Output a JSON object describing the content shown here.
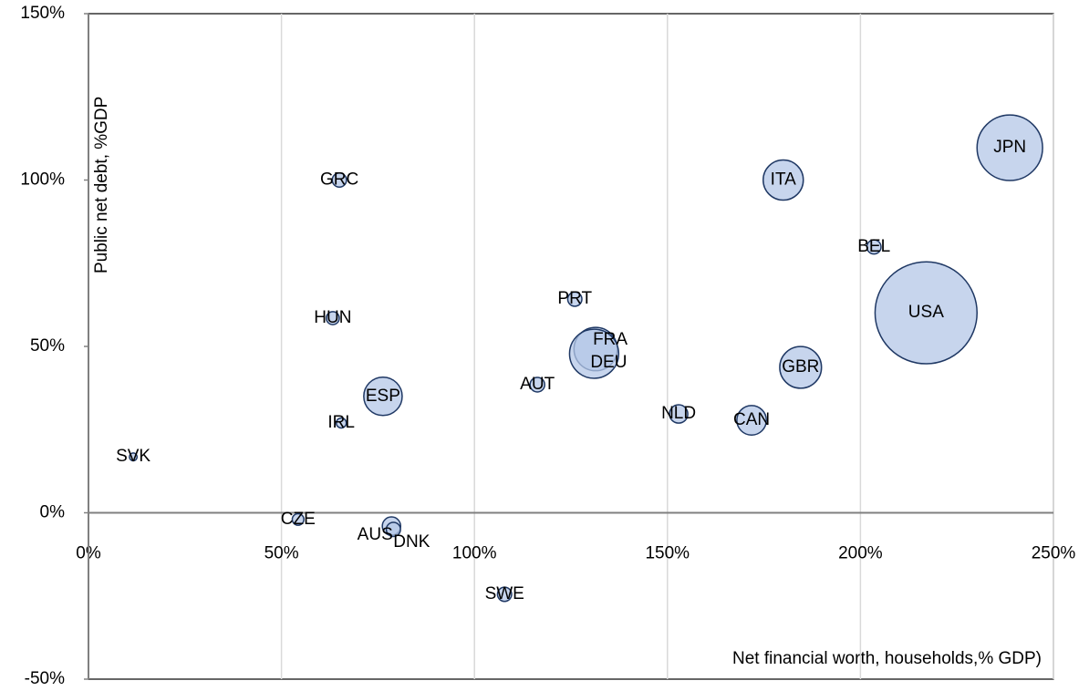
{
  "chart_data": {
    "type": "bubble",
    "x_label": "Net financial worth, households,% GDP)",
    "y_label": "Public net debt, %GDP",
    "labels": [
      "SVK",
      "CZE",
      "AUS",
      "DNK",
      "SWE",
      "GRC",
      "HUN",
      "IRL",
      "ESP",
      "AUT",
      "PRT",
      "FRA",
      "DEU",
      "NLD",
      "CAN",
      "ITA",
      "GBR",
      "BEL",
      "USA",
      "JPN"
    ],
    "x": [
      11.6,
      54.3,
      78.5,
      79,
      107.8,
      65,
      63.3,
      65.5,
      76.3,
      116.3,
      126,
      131.4,
      131,
      152.9,
      171.8,
      180,
      184.5,
      203.5,
      217,
      238.7
    ],
    "y": [
      16.8,
      -2,
      -4,
      -5,
      -24.5,
      100,
      58.5,
      27,
      35,
      38.5,
      64.2,
      49.2,
      47.8,
      29.7,
      27.8,
      100,
      43.7,
      79.9,
      60.1,
      109.7
    ],
    "sizes": [
      0.09,
      0.2,
      0.5,
      0.3,
      0.3,
      0.3,
      0.25,
      0.15,
      2.2,
      0.32,
      0.3,
      2.8,
      3.6,
      0.5,
      1.3,
      2.4,
      2.6,
      0.3,
      15.5,
      6.4
    ],
    "color": "#b4c7e7",
    "edge_color": "#1f3864",
    "xlim": [
      0,
      250
    ],
    "ylim": [
      -50,
      150
    ],
    "xticks": [
      {
        "value": 0,
        "label": "0%"
      },
      {
        "value": 50,
        "label": "50%"
      },
      {
        "value": 100,
        "label": "100%"
      },
      {
        "value": 150,
        "label": "150%"
      },
      {
        "value": 200,
        "label": "200%"
      },
      {
        "value": 250,
        "label": "250%"
      }
    ],
    "yticks": [
      {
        "value": -50,
        "label": "-50%"
      },
      {
        "value": 0,
        "label": "0%"
      },
      {
        "value": 50,
        "label": "50%"
      },
      {
        "value": 100,
        "label": "100%"
      },
      {
        "value": 150,
        "label": "150%"
      }
    ],
    "grid": true
  }
}
